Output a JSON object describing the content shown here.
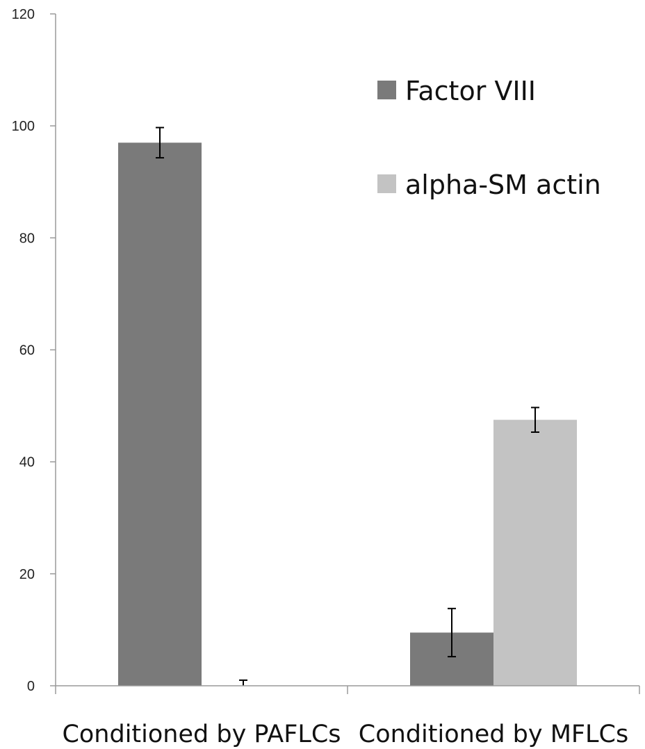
{
  "chart_data": {
    "type": "bar",
    "categories": [
      "Conditioned by PAFLCs",
      "Conditioned by MFLCs"
    ],
    "series": [
      {
        "name": "Factor VIII",
        "color": "#7a7a7a",
        "values": [
          97,
          9.5
        ],
        "errors": [
          2.7,
          4.3
        ]
      },
      {
        "name": "alpha-SM actin",
        "color": "#c3c3c3",
        "values": [
          0,
          47.5
        ],
        "errors": [
          1.0,
          2.2
        ]
      }
    ],
    "ylim": [
      0,
      120
    ],
    "yticks": [
      0,
      20,
      40,
      60,
      80,
      100,
      120
    ],
    "grid": false,
    "legend_position": "top-right",
    "title": "",
    "xlabel": "",
    "ylabel": ""
  }
}
